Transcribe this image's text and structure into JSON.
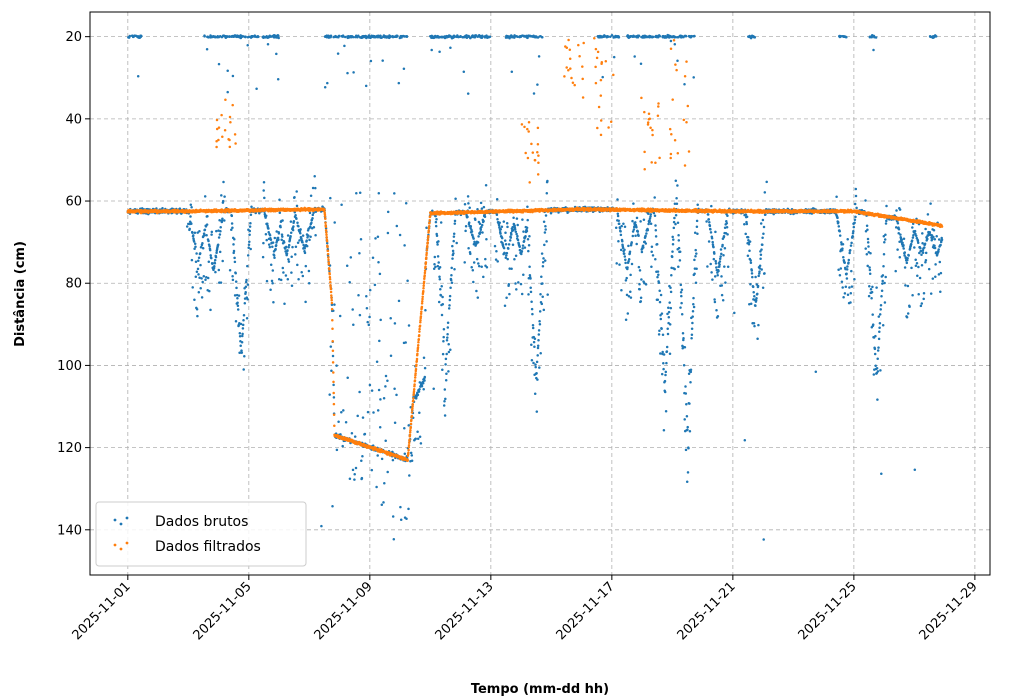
{
  "chart_data": {
    "type": "scatter",
    "title": "",
    "xlabel": "Tempo (mm-dd hh)",
    "ylabel": "Distância (cm)",
    "x_range": [
      "2025-10-30T18:00",
      "2025-11-29T12:00"
    ],
    "ylim": [
      151,
      14
    ],
    "y_inverted": true,
    "grid": true,
    "legend_position": "lower-left",
    "xticks": [
      "2025-11-01",
      "2025-11-05",
      "2025-11-09",
      "2025-11-13",
      "2025-11-17",
      "2025-11-21",
      "2025-11-25",
      "2025-11-29"
    ],
    "yticks": [
      20,
      40,
      60,
      80,
      100,
      120,
      140
    ],
    "series": [
      {
        "name": "Dados brutos",
        "color": "#1f77b4",
        "baseline_points": [
          [
            "2025-11-01T00:00",
            62.5
          ],
          [
            "2025-11-03T00:00",
            62.5
          ],
          [
            "2025-11-07T12:00",
            62
          ],
          [
            "2025-11-07T18:00",
            85
          ],
          [
            "2025-11-07T20:00",
            117
          ],
          [
            "2025-11-10T06:00",
            123
          ],
          [
            "2025-11-11T00:00",
            63
          ],
          [
            "2025-11-16T00:00",
            62
          ],
          [
            "2025-11-21T00:00",
            62.5
          ],
          [
            "2025-11-25T00:00",
            62.5
          ],
          [
            "2025-11-27T22:00",
            66
          ]
        ],
        "dips": [
          [
            "2025-11-03T08:00",
            75
          ],
          [
            "2025-11-03T20:00",
            77
          ],
          [
            "2025-11-04T18:00",
            97
          ],
          [
            "2025-11-05T20:00",
            73
          ],
          [
            "2025-11-06T06:00",
            73
          ],
          [
            "2025-11-06T20:00",
            72
          ],
          [
            "2025-11-10T12:00",
            108
          ],
          [
            "2025-11-11T12:00",
            100
          ],
          [
            "2025-11-12T12:00",
            71
          ],
          [
            "2025-11-13T12:00",
            74
          ],
          [
            "2025-11-14T00:00",
            73
          ],
          [
            "2025-11-14T12:00",
            103
          ],
          [
            "2025-11-17T12:00",
            77
          ],
          [
            "2025-11-18T00:00",
            72
          ],
          [
            "2025-11-18T18:00",
            106
          ],
          [
            "2025-11-19T12:00",
            116
          ],
          [
            "2025-11-20T12:00",
            78
          ],
          [
            "2025-11-21T18:00",
            86
          ],
          [
            "2025-11-24T18:00",
            78
          ],
          [
            "2025-11-25T18:00",
            103
          ],
          [
            "2025-11-26T18:00",
            75
          ],
          [
            "2025-11-27T06:00",
            73
          ],
          [
            "2025-11-27T18:00",
            73
          ]
        ],
        "upper_band_y": 20,
        "upper_band_periods": [
          [
            "2025-11-01T00:00",
            "2025-11-01T12:00"
          ],
          [
            "2025-11-03T12:00",
            "2025-11-06T00:00"
          ],
          [
            "2025-11-07T12:00",
            "2025-11-10T06:00"
          ],
          [
            "2025-11-11T00:00",
            "2025-11-13T00:00"
          ],
          [
            "2025-11-13T12:00",
            "2025-11-14T18:00"
          ],
          [
            "2025-11-16T12:00",
            "2025-11-17T06:00"
          ],
          [
            "2025-11-17T12:00",
            "2025-11-19T18:00"
          ],
          [
            "2025-11-21T12:00",
            "2025-11-21T18:00"
          ],
          [
            "2025-11-24T12:00",
            "2025-11-24T18:00"
          ],
          [
            "2025-11-25T12:00",
            "2025-11-25T18:00"
          ],
          [
            "2025-11-27T12:00",
            "2025-11-27T18:00"
          ]
        ]
      },
      {
        "name": "Dados filtrados",
        "color": "#ff7f0e",
        "baseline_points": [
          [
            "2025-11-01T00:00",
            62.5
          ],
          [
            "2025-11-03T00:00",
            62.5
          ],
          [
            "2025-11-07T12:00",
            62
          ],
          [
            "2025-11-07T18:00",
            85
          ],
          [
            "2025-11-07T20:00",
            117
          ],
          [
            "2025-11-10T06:00",
            123
          ],
          [
            "2025-11-11T00:00",
            63
          ],
          [
            "2025-11-16T00:00",
            62
          ],
          [
            "2025-11-21T00:00",
            62.5
          ],
          [
            "2025-11-25T00:00",
            62.5
          ],
          [
            "2025-11-27T22:00",
            66
          ]
        ],
        "outlier_clusters": [
          [
            "2025-11-04T06:00",
            35,
            48
          ],
          [
            "2025-11-14T06:00",
            40,
            57
          ],
          [
            "2025-11-15T18:00",
            20,
            35
          ],
          [
            "2025-11-16T18:00",
            20,
            45
          ],
          [
            "2025-11-18T06:00",
            30,
            55
          ],
          [
            "2025-11-19T06:00",
            20,
            52
          ]
        ]
      }
    ]
  }
}
